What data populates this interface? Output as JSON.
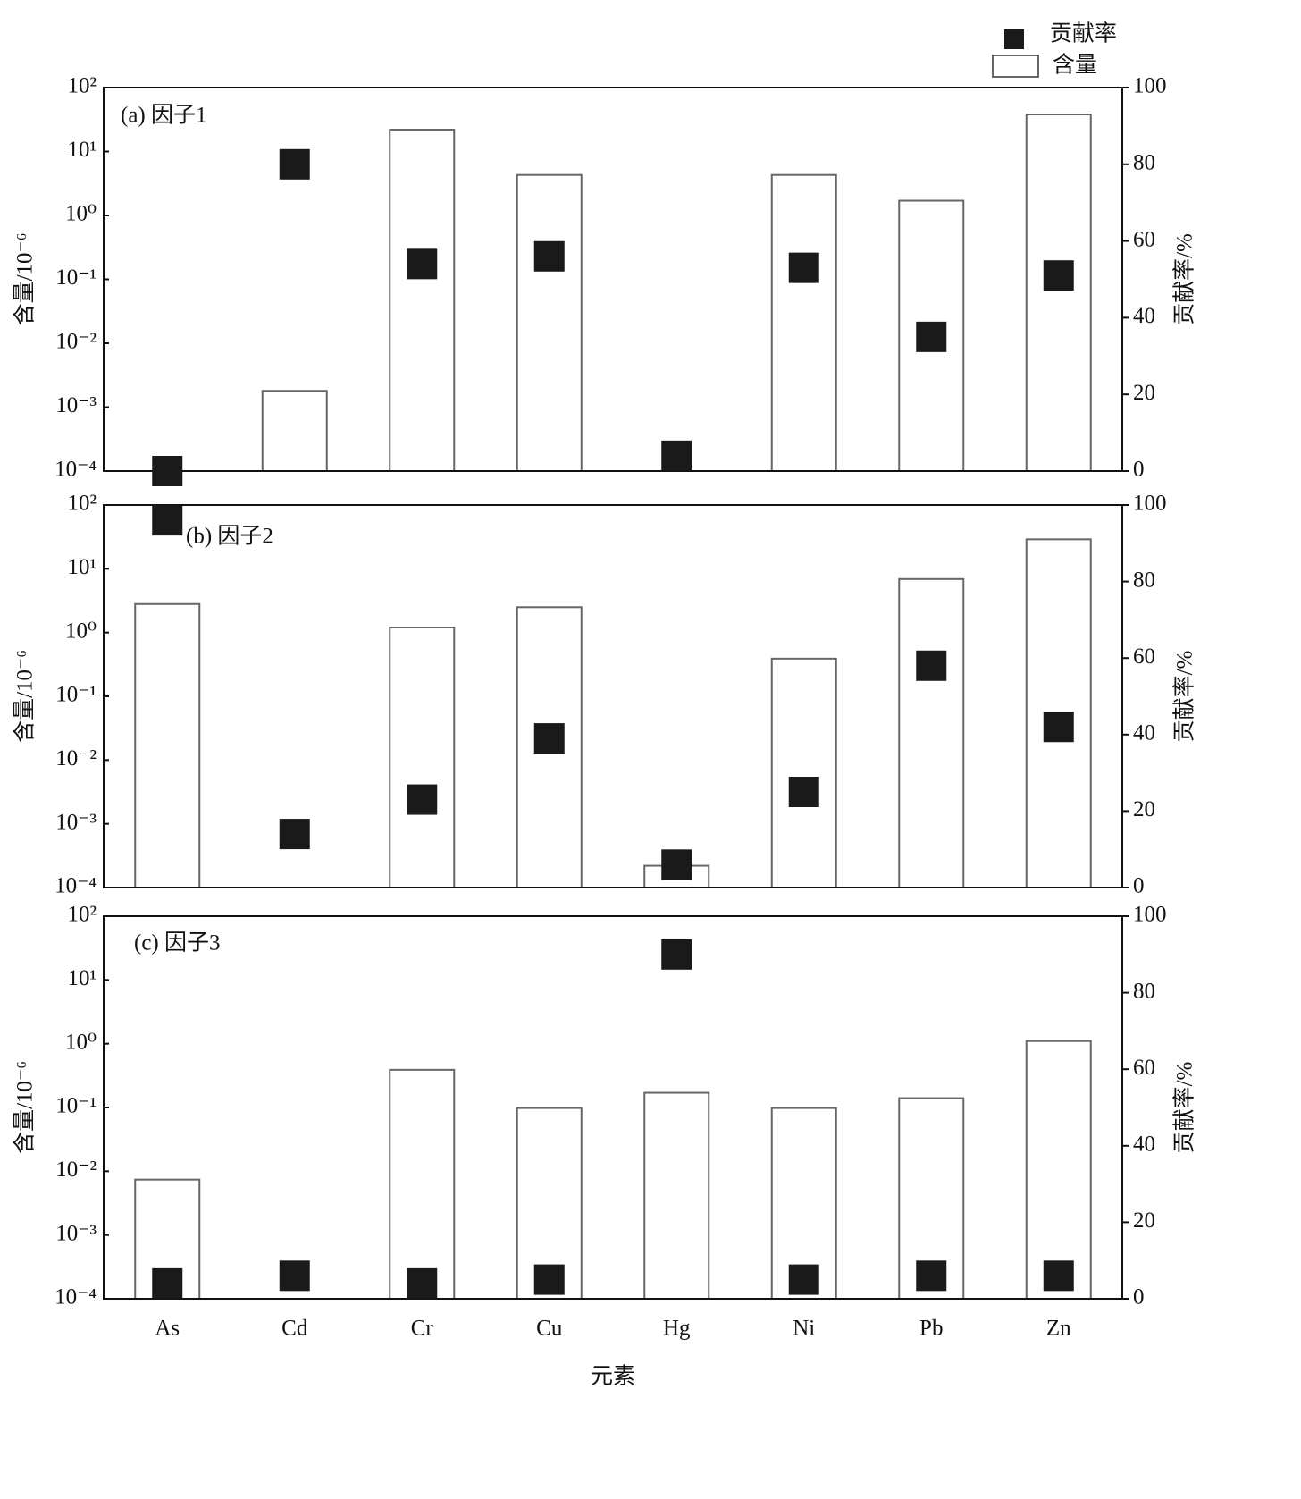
{
  "chart_data": {
    "type": "bar",
    "categories": [
      "As",
      "Cd",
      "Cr",
      "Cu",
      "Hg",
      "Ni",
      "Pb",
      "Zn"
    ],
    "xlabel": "元素",
    "ylabel": "含量/10⁻⁶",
    "y2label": "贡献率/%",
    "log_scale": true,
    "grid": false,
    "legend": "top-right",
    "ylim": [
      0.0001,
      100
    ],
    "yticks": [
      {
        "value": 0.0001,
        "label": "10⁻⁴"
      },
      {
        "value": 0.001,
        "label": "10⁻³"
      },
      {
        "value": 0.01,
        "label": "10⁻²"
      },
      {
        "value": 0.1,
        "label": "10⁻¹"
      },
      {
        "value": 1,
        "label": "10⁰"
      },
      {
        "value": 10,
        "label": "10¹"
      },
      {
        "value": 100,
        "label": "10²"
      }
    ],
    "y2lim": [
      0,
      100
    ],
    "y2ticks": [
      0,
      20,
      40,
      60,
      80,
      100
    ],
    "series": [
      {
        "name": "贡献率",
        "color": "#1a1a1a",
        "axis": "y2"
      },
      {
        "name": "含量",
        "color": "#ffffff",
        "edgecolor": "#666666"
      }
    ],
    "panels": [
      {
        "title": "(a) 因子1",
        "series": [
          {
            "values": [
              0,
              80,
              54,
              56,
              4,
              53,
              35,
              51
            ]
          },
          {
            "values": [
              null,
              0.0018,
              22,
              4.3,
              null,
              4.3,
              1.7,
              38
            ]
          }
        ]
      },
      {
        "title": "(b) 因子2",
        "series": [
          {
            "values": [
              96,
              14,
              23,
              39,
              6,
              25,
              58,
              42
            ]
          },
          {
            "values": [
              2.8,
              null,
              1.2,
              2.5,
              0.00022,
              0.39,
              6.9,
              29
            ]
          }
        ]
      },
      {
        "title": "(c) 因子3",
        "series": [
          {
            "values": [
              4,
              6,
              4,
              5,
              90,
              5,
              6,
              6
            ]
          },
          {
            "values": [
              0.0074,
              null,
              0.39,
              0.098,
              0.17,
              0.098,
              0.14,
              1.1
            ]
          }
        ]
      }
    ]
  }
}
